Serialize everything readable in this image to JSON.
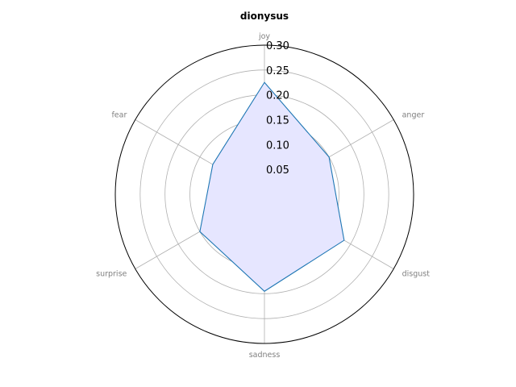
{
  "chart_data": {
    "type": "radar",
    "title": "dionysus",
    "categories": [
      "joy",
      "anger",
      "disgust",
      "sadness",
      "surprise",
      "fear"
    ],
    "series": [
      {
        "values": [
          0.225,
          0.15,
          0.185,
          0.195,
          0.15,
          0.12
        ]
      }
    ],
    "rlim": [
      0,
      0.3
    ],
    "r_ticks": [
      "0.05",
      "0.10",
      "0.15",
      "0.20",
      "0.25",
      "0.30"
    ],
    "grid": true,
    "colors": {
      "line": "#1f77b4",
      "fill": "#e6e6ff",
      "grid": "#b0b0b0",
      "frame": "#000000"
    }
  }
}
